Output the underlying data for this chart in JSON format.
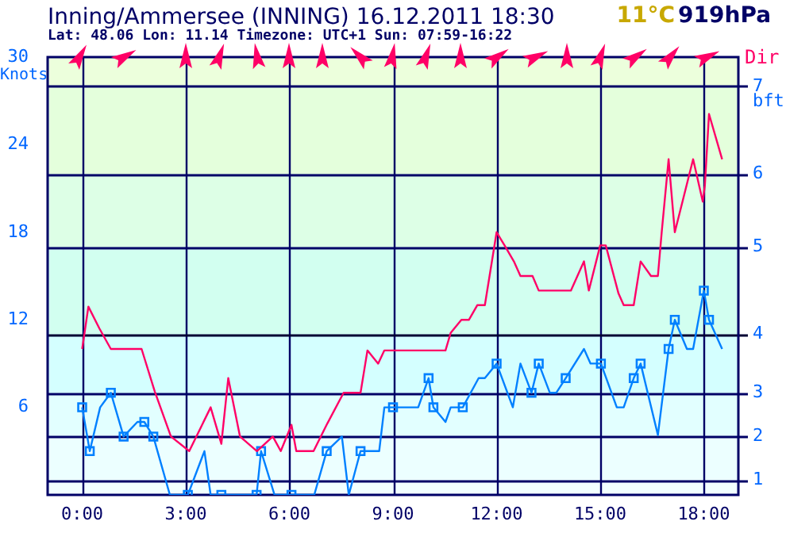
{
  "chart_data": {
    "type": "line",
    "title": "Inning/Ammersee (INNING) 16.12.2011 18:30",
    "subtitle": "Lat: 48.06 Lon: 11.14 Timezone: UTC+1 Sun: 07:59-16:22",
    "ylabel": "Knots",
    "annotations": [
      "11°C",
      "919hPa",
      "Dir",
      "bft",
      "1",
      "2",
      "3",
      "4",
      "5",
      "6",
      "7"
    ],
    "xlim": [
      -1,
      19
    ],
    "xticks": [
      {
        "value": 0,
        "label": "0:00"
      },
      {
        "value": 3,
        "label": "3:00"
      },
      {
        "value": 6,
        "label": "6:00"
      },
      {
        "value": 9,
        "label": "9:00"
      },
      {
        "value": 12,
        "label": "12:00"
      },
      {
        "value": 15,
        "label": "15:00"
      },
      {
        "value": 18,
        "label": "18:00"
      }
    ],
    "ylim": [
      0,
      30
    ],
    "yticks": [
      6,
      12,
      18,
      24,
      30
    ],
    "grid": "x",
    "legend": false,
    "ref_lines": [
      {
        "axis": "y",
        "value": 1,
        "color": "#000066"
      },
      {
        "axis": "y",
        "value": 4,
        "color": "#000066"
      },
      {
        "axis": "y",
        "value": 7,
        "color": "#000066"
      },
      {
        "axis": "y",
        "value": 11,
        "color": "#000033"
      },
      {
        "axis": "y",
        "value": 17,
        "color": "#000066"
      },
      {
        "axis": "y",
        "value": 22,
        "color": "#000066"
      },
      {
        "axis": "y",
        "value": 28,
        "color": "#000066"
      }
    ],
    "bands": [
      {
        "axis": "y",
        "from": 0,
        "to": 1,
        "color": "#f2ffff"
      },
      {
        "axis": "y",
        "from": 1,
        "to": 4,
        "color": "#ecffff"
      },
      {
        "axis": "y",
        "from": 4,
        "to": 7,
        "color": "#e2ffff"
      },
      {
        "axis": "y",
        "from": 7,
        "to": 11,
        "color": "#d4ffff"
      },
      {
        "axis": "y",
        "from": 11,
        "to": 17,
        "color": "#d2fff0"
      },
      {
        "axis": "y",
        "from": 17,
        "to": 22,
        "color": "#ddffe6"
      },
      {
        "axis": "y",
        "from": 22,
        "to": 28,
        "color": "#e4ffdc"
      },
      {
        "axis": "y",
        "from": 28,
        "to": 30,
        "color": "#ecffdc"
      }
    ],
    "series": [
      {
        "color": "#ff0066",
        "marker": "none",
        "x": [
          0,
          0.18,
          0.5,
          0.83,
          1.72,
          2.1,
          2.57,
          3.1,
          3.72,
          4.03,
          4.23,
          4.57,
          5.06,
          5.52,
          5.75,
          6.06,
          6.2,
          6.7,
          7.1,
          7.57,
          8.06,
          8.26,
          8.57,
          8.75,
          9.06,
          10.52,
          10.67,
          10.98,
          11.2,
          11.44,
          11.66,
          12,
          12.23,
          12.5,
          12.69,
          13.04,
          13.22,
          14.15,
          14.53,
          14.67,
          15,
          15.16,
          15.53,
          15.68,
          15.97,
          16.17,
          16.47,
          16.67,
          16.78,
          16.98,
          17.16,
          17.69,
          17.97,
          18.03,
          18.15,
          18.53
        ],
        "values": [
          10,
          12.9,
          11.4,
          10,
          10,
          7.1,
          4,
          3,
          6,
          3.5,
          8,
          4,
          3,
          4,
          3,
          4.8,
          3,
          3,
          4.9,
          7,
          7,
          9.9,
          9,
          9.9,
          9.9,
          9.9,
          11.1,
          12,
          12,
          13,
          13,
          18,
          17.1,
          16,
          15,
          15,
          14,
          14,
          16,
          14,
          17.1,
          17.1,
          13.8,
          13,
          13,
          16,
          15,
          15,
          18,
          23,
          18,
          23,
          20.1,
          21.2,
          26.1,
          23
        ]
      },
      {
        "color": "#0080ff",
        "marker": "square",
        "x": [
          0,
          0.22,
          0.52,
          0.83,
          1.2,
          1.6,
          1.8,
          2.06,
          2.54,
          3.06,
          3.54,
          3.72,
          4.03,
          5.05,
          5.18,
          5.57,
          6.06,
          6.72,
          7.08,
          7.52,
          7.72,
          8.06,
          8.6,
          8.75,
          9,
          9.73,
          10.03,
          10.17,
          10.52,
          10.67,
          11.02,
          11.48,
          11.66,
          12,
          12.47,
          12.69,
          13.01,
          13.22,
          13.54,
          13.73,
          14,
          14.53,
          14.72,
          15.02,
          15.48,
          15.68,
          15.97,
          16.17,
          16.67,
          16.98,
          17.16,
          17.51,
          17.69,
          18,
          18.15,
          18.53
        ],
        "values": [
          6,
          3,
          6,
          7,
          4,
          5,
          5,
          4,
          0,
          0,
          3,
          0,
          0,
          0,
          3,
          0,
          0,
          0,
          3,
          4,
          0,
          3,
          3,
          6,
          6,
          6,
          8,
          6,
          5,
          6,
          6,
          8,
          8,
          9,
          6,
          9,
          7,
          9,
          7,
          7,
          8,
          10,
          9,
          9,
          6,
          6,
          8,
          9,
          4.1,
          10,
          12,
          10,
          10,
          14,
          12,
          10
        ]
      }
    ]
  }
}
